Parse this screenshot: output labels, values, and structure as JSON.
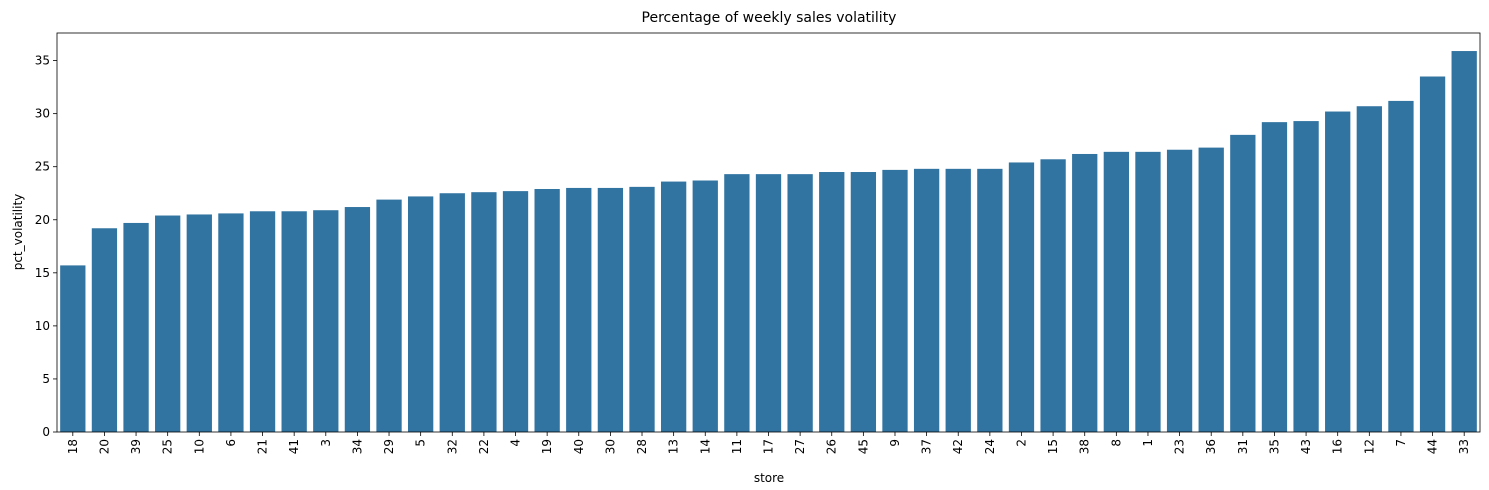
{
  "chart_data": {
    "type": "bar",
    "title": "Percentage of weekly sales volatility",
    "xlabel": "store",
    "ylabel": "pct_volatility",
    "categories": [
      "18",
      "20",
      "39",
      "25",
      "10",
      "6",
      "21",
      "41",
      "3",
      "34",
      "29",
      "5",
      "32",
      "22",
      "4",
      "19",
      "40",
      "30",
      "28",
      "13",
      "14",
      "11",
      "17",
      "27",
      "26",
      "45",
      "9",
      "37",
      "42",
      "24",
      "2",
      "15",
      "38",
      "8",
      "1",
      "23",
      "36",
      "31",
      "35",
      "43",
      "16",
      "12",
      "7",
      "44",
      "33"
    ],
    "values": [
      15.7,
      19.2,
      19.7,
      20.4,
      20.5,
      20.6,
      20.8,
      20.8,
      20.9,
      21.2,
      21.9,
      22.2,
      22.5,
      22.6,
      22.7,
      22.9,
      23.0,
      23.0,
      23.1,
      23.6,
      23.7,
      24.3,
      24.3,
      24.3,
      24.5,
      24.5,
      24.7,
      24.8,
      24.8,
      24.8,
      25.4,
      25.7,
      26.2,
      26.4,
      26.4,
      26.6,
      26.8,
      28.0,
      29.2,
      29.3,
      30.2,
      30.7,
      31.2,
      33.5,
      35.9
    ],
    "ylim": [
      0,
      37.6
    ],
    "yticks": [
      0,
      5,
      10,
      15,
      20,
      25,
      30,
      35
    ],
    "grid": false,
    "color": "#3274a1"
  }
}
